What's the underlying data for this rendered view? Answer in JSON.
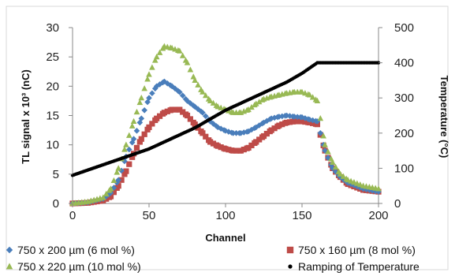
{
  "chart_data": {
    "type": "scatter",
    "xlabel": "Channel",
    "ylabel_left": "TL signal x 10³ (nC)",
    "ylabel_right": "Temperature (°C)",
    "xlim": [
      0,
      200
    ],
    "ylim_left": [
      0,
      30
    ],
    "ylim_right": [
      0,
      500
    ],
    "x_ticks": [
      "0",
      "50",
      "100",
      "150",
      "200"
    ],
    "y_ticks_left": [
      "0",
      "5",
      "10",
      "15",
      "20",
      "25",
      "30"
    ],
    "y_ticks_right": [
      "0",
      "100",
      "200",
      "300",
      "400",
      "500"
    ],
    "grid": false,
    "legend_position": "bottom",
    "series": [
      {
        "name": "750 x 200 µm (6 mol %)",
        "marker": "diamond",
        "color": "#4a7ebb",
        "axis": "left",
        "x": [
          0,
          10,
          20,
          25,
          30,
          35,
          40,
          45,
          50,
          55,
          60,
          65,
          70,
          75,
          80,
          85,
          90,
          95,
          100,
          105,
          110,
          115,
          120,
          125,
          130,
          135,
          140,
          145,
          150,
          155,
          160,
          165,
          170,
          175,
          180,
          190,
          200
        ],
        "y": [
          0,
          0.2,
          0.8,
          1.8,
          4,
          8,
          11,
          14.5,
          18,
          20,
          20.8,
          20,
          19,
          17.5,
          16.5,
          15.5,
          14,
          13,
          12.4,
          12,
          12,
          12.3,
          13,
          13.8,
          14.5,
          14.8,
          15,
          14.8,
          14.7,
          14.3,
          14,
          9,
          6,
          4.5,
          3.5,
          2.5,
          2
        ]
      },
      {
        "name": "750 x 160 µm (8 mol %)",
        "marker": "square",
        "color": "#be4b48",
        "axis": "left",
        "x": [
          0,
          10,
          20,
          25,
          30,
          35,
          40,
          45,
          50,
          55,
          60,
          65,
          70,
          75,
          80,
          85,
          90,
          95,
          100,
          105,
          110,
          115,
          120,
          125,
          130,
          135,
          140,
          145,
          150,
          155,
          160,
          165,
          170,
          175,
          180,
          190,
          200
        ],
        "y": [
          0,
          0.1,
          0.5,
          1.2,
          3,
          5.5,
          8.5,
          11,
          13,
          14.5,
          15.5,
          16,
          16,
          15,
          13.5,
          12,
          10.5,
          9.8,
          9.3,
          9,
          9,
          9.5,
          10.5,
          11.5,
          12.5,
          13.3,
          13.8,
          14,
          14,
          13.8,
          13.5,
          9,
          6,
          4.5,
          3.3,
          2.3,
          2
        ]
      },
      {
        "name": "750 x 220 µm (10 mol %)",
        "marker": "triangle",
        "color": "#98b954",
        "axis": "left",
        "x": [
          0,
          10,
          20,
          25,
          30,
          35,
          40,
          45,
          50,
          55,
          60,
          65,
          70,
          75,
          80,
          85,
          90,
          95,
          100,
          105,
          110,
          115,
          120,
          125,
          130,
          135,
          140,
          145,
          150,
          155,
          160,
          165,
          170,
          175,
          180,
          190,
          200
        ],
        "y": [
          0,
          0.3,
          1,
          2.5,
          6,
          10,
          14,
          18,
          22,
          25,
          26.8,
          26.5,
          26,
          24,
          21,
          19,
          17.5,
          16.5,
          16,
          15.5,
          15.5,
          16,
          17,
          17.8,
          18.2,
          18.5,
          18.8,
          19,
          19,
          18.5,
          17.5,
          10,
          7,
          5,
          4,
          3,
          2.5
        ]
      },
      {
        "name": "Ramping of Temperature",
        "marker": "circle",
        "color": "#000000",
        "axis": "right",
        "x": [
          0,
          10,
          20,
          30,
          40,
          50,
          60,
          70,
          80,
          90,
          100,
          110,
          120,
          130,
          140,
          150,
          160,
          170,
          180,
          190,
          200
        ],
        "y": [
          80,
          95,
          110,
          125,
          140,
          155,
          175,
          195,
          215,
          240,
          265,
          285,
          305,
          325,
          345,
          370,
          400,
          400,
          400,
          400,
          400
        ]
      }
    ]
  }
}
